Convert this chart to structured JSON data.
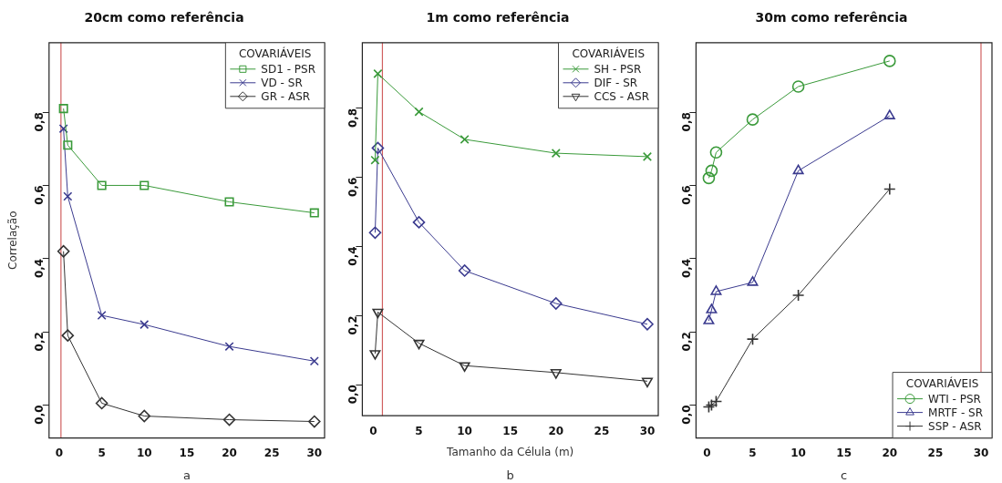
{
  "chart_data": [
    {
      "type": "line",
      "title": "20cm como referência",
      "ylabel": "Correlação",
      "legend_title": "COVARIÁVEIS",
      "legend": "top right",
      "annotations": [
        "a"
      ],
      "x": [
        0.5,
        1,
        5,
        10,
        20,
        30
      ],
      "series": [
        {
          "name": "SD1 - PSR",
          "color": "#3a9a3a",
          "marker": "square",
          "values": [
            0.81,
            0.71,
            0.6,
            0.6,
            0.555,
            0.525
          ]
        },
        {
          "name": "VD - SR",
          "color": "#3b3b8f",
          "marker": "cross",
          "values": [
            0.755,
            0.57,
            0.245,
            0.22,
            0.16,
            0.12
          ]
        },
        {
          "name": "GR - ASR",
          "color": "#333333",
          "marker": "diamond",
          "values": [
            0.42,
            0.19,
            0.005,
            -0.03,
            -0.04,
            -0.045
          ]
        }
      ],
      "xlim": [
        -1.2,
        31.2
      ],
      "xticks": [
        0,
        5,
        10,
        15,
        20,
        25,
        30
      ],
      "ylim": [
        -0.09,
        0.99
      ],
      "yticks": [
        {
          "value": 0,
          "label": "0,0"
        },
        {
          "value": 0.2,
          "label": "0,2"
        },
        {
          "value": 0.4,
          "label": "0,4"
        },
        {
          "value": 0.6,
          "label": "0,6"
        },
        {
          "value": 0.8,
          "label": "0,8"
        }
      ],
      "ref_lines": [
        {
          "axis": "x",
          "value": 0.2,
          "label": null,
          "color": "#d06060"
        }
      ],
      "grid": false
    },
    {
      "type": "line",
      "title": "1m como referência",
      "xlabel": "Tamanho da Célula (m)",
      "legend_title": "COVARIÁVEIS",
      "legend": "top right",
      "annotations": [
        "b"
      ],
      "x": [
        0.2,
        0.5,
        5,
        10,
        20,
        30
      ],
      "series": [
        {
          "name": "SH - PSR",
          "color": "#3a9a3a",
          "marker": "cross",
          "values": [
            0.65,
            0.9,
            0.79,
            0.71,
            0.67,
            0.66
          ]
        },
        {
          "name": "DIF - SR",
          "color": "#3b3b8f",
          "marker": "diamond",
          "values": [
            0.44,
            0.685,
            0.47,
            0.33,
            0.235,
            0.175
          ]
        },
        {
          "name": "CCS - ASR",
          "color": "#333333",
          "marker": "triangle-down",
          "values": [
            0.09,
            0.21,
            0.12,
            0.055,
            0.035,
            0.01
          ]
        }
      ],
      "xlim": [
        -1.2,
        31.2
      ],
      "xticks": [
        0,
        5,
        10,
        15,
        20,
        25,
        30
      ],
      "ylim": [
        -0.09,
        0.99
      ],
      "yticks": [
        {
          "value": 0,
          "label": "0,0"
        },
        {
          "value": 0.2,
          "label": "0,2"
        },
        {
          "value": 0.4,
          "label": "0,4"
        },
        {
          "value": 0.6,
          "label": "0,6"
        },
        {
          "value": 0.8,
          "label": "0,8"
        }
      ],
      "ref_lines": [
        {
          "axis": "x",
          "value": 1,
          "label": null,
          "color": "#d06060"
        }
      ],
      "grid": false
    },
    {
      "type": "line",
      "title": "30m como referência",
      "legend_title": "COVARIÁVEIS",
      "legend": "bottom right",
      "annotations": [
        "c"
      ],
      "x": [
        0.2,
        0.5,
        1,
        5,
        10,
        20
      ],
      "series": [
        {
          "name": "WTI - PSR",
          "color": "#3a9a3a",
          "marker": "circle",
          "values": [
            0.62,
            0.64,
            0.69,
            0.78,
            0.87,
            0.94
          ]
        },
        {
          "name": "MRTF - SR",
          "color": "#3b3b8f",
          "marker": "triangle",
          "values": [
            0.23,
            0.26,
            0.31,
            0.335,
            0.64,
            0.79
          ]
        },
        {
          "name": "SSP - ASR",
          "color": "#333333",
          "marker": "plus",
          "values": [
            -0.005,
            0.0,
            0.01,
            0.18,
            0.3,
            0.59
          ]
        }
      ],
      "xlim": [
        -1.2,
        31.2
      ],
      "xticks": [
        0,
        5,
        10,
        15,
        20,
        25,
        30
      ],
      "ylim": [
        -0.09,
        0.99
      ],
      "yticks": [
        {
          "value": 0,
          "label": "0,0"
        },
        {
          "value": 0.2,
          "label": "0,2"
        },
        {
          "value": 0.4,
          "label": "0,4"
        },
        {
          "value": 0.6,
          "label": "0,6"
        },
        {
          "value": 0.8,
          "label": "0,8"
        }
      ],
      "ref_lines": [
        {
          "axis": "x",
          "value": 30,
          "label": null,
          "color": "#d06060"
        }
      ],
      "grid": false
    }
  ]
}
